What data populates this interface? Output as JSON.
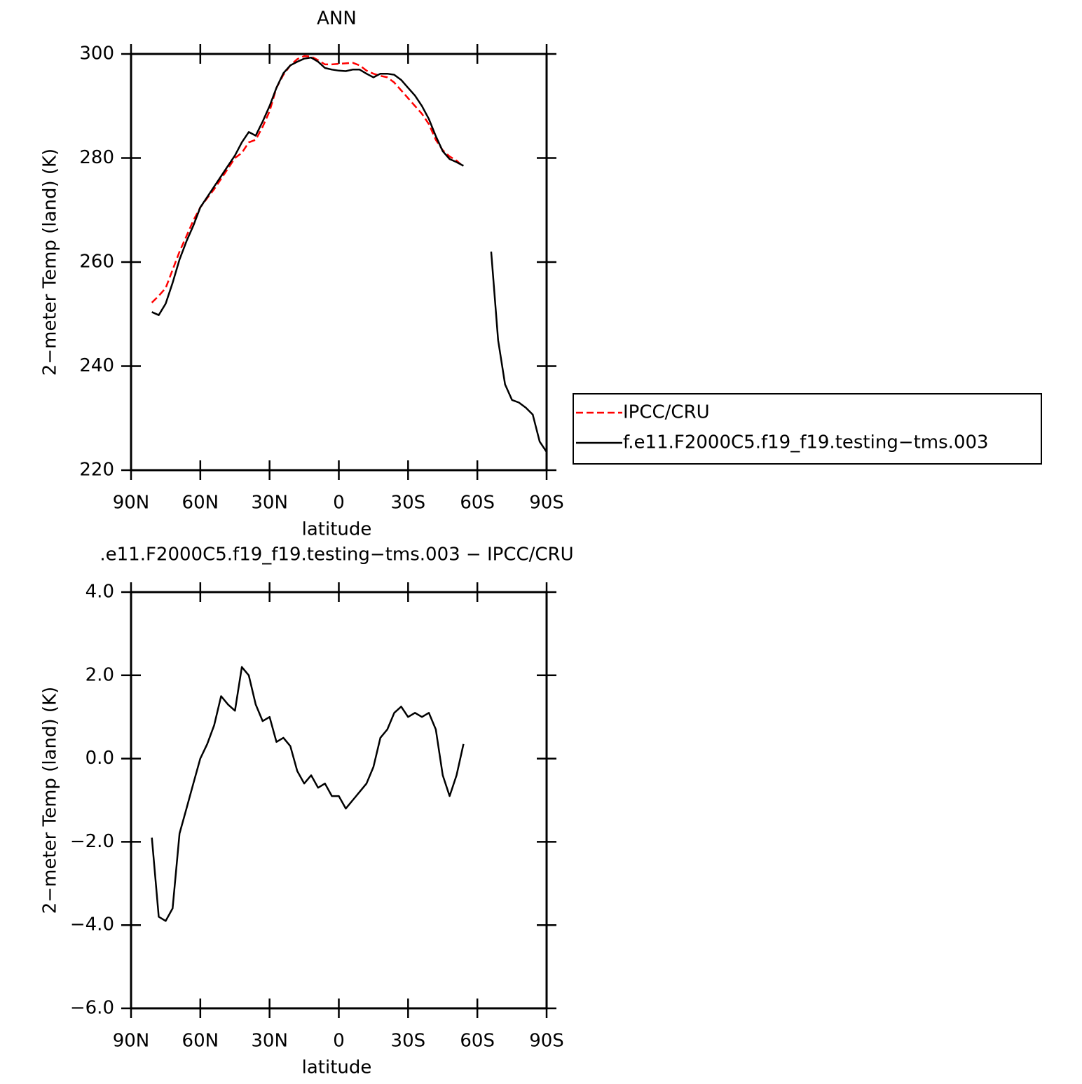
{
  "chart_data": [
    {
      "type": "line",
      "title": "ANN",
      "xlabel": "latitude",
      "ylabel": "2−meter Temp (land) (K)",
      "x": [
        81,
        78,
        75,
        72,
        69,
        66,
        63,
        60,
        57,
        54,
        51,
        48,
        45,
        42,
        39,
        36,
        33,
        30,
        27,
        24,
        21,
        18,
        15,
        12,
        9,
        6,
        3,
        0,
        -3,
        -6,
        -9,
        -12,
        -15,
        -18,
        -21,
        -24,
        -27,
        -30,
        -33,
        -36,
        -39,
        -42,
        -45,
        -48,
        -51,
        -54,
        -57,
        -60,
        -63,
        -66,
        -69,
        -72,
        -75,
        -78,
        -81,
        -84,
        -87,
        -90
      ],
      "series": [
        {
          "name": "IPCC/CRU",
          "color": "#ff0000",
          "line_style": "dashed",
          "values": [
            252.2,
            253.5,
            255,
            258.5,
            262,
            265,
            268,
            270.5,
            272.3,
            274,
            276,
            278,
            280,
            281,
            283,
            283.5,
            286,
            289,
            293.5,
            296,
            297.8,
            299,
            299.6,
            299.5,
            298.8,
            298,
            298,
            298.1,
            298.2,
            298.3,
            297.8,
            296.8,
            296.2,
            295.8,
            295.5,
            294.5,
            293,
            291.5,
            290,
            288.5,
            286.5,
            283.5,
            281.5,
            280.3,
            279.5,
            278.3,
            null,
            null,
            null,
            null,
            null,
            null,
            null,
            null,
            null,
            null,
            null,
            null
          ]
        },
        {
          "name": "f.e11.F2000C5.f19_f19.testing−tms.003",
          "color": "#000000",
          "line_style": "solid",
          "values": [
            250.4,
            249.8,
            252,
            256,
            260.5,
            264,
            267,
            270.5,
            272.5,
            274.5,
            276.5,
            278.5,
            280.5,
            283,
            285,
            284.3,
            287,
            290,
            293.5,
            296.3,
            297.8,
            298.5,
            299.1,
            299.3,
            298.5,
            297.3,
            297,
            296.8,
            296.7,
            297,
            297,
            296.2,
            295.5,
            296.2,
            296.2,
            296,
            295,
            293.5,
            292,
            290,
            287.5,
            284.2,
            281.3,
            279.8,
            279.2,
            278.5,
            null,
            null,
            null,
            262,
            245,
            236.5,
            233.5,
            233,
            232,
            230.7,
            225.5,
            223.5
          ]
        }
      ],
      "xlim": [
        90,
        -90
      ],
      "xticks": [
        {
          "value": 90,
          "label": "90N"
        },
        {
          "value": 60,
          "label": "60N"
        },
        {
          "value": 30,
          "label": "30N"
        },
        0,
        {
          "value": -30,
          "label": "30S"
        },
        {
          "value": -60,
          "label": "60S"
        },
        {
          "value": -90,
          "label": "90S"
        }
      ],
      "ylim": [
        220,
        300
      ],
      "yticks": [
        220,
        240,
        260,
        280,
        300
      ],
      "legend": "right"
    },
    {
      "type": "line",
      "title": ".e11.F2000C5.f19_f19.testing−tms.003 − IPCC/CRU",
      "xlabel": "latitude",
      "ylabel": "2−meter Temp (land) (K)",
      "x": [
        81,
        78,
        75,
        72,
        69,
        66,
        63,
        60,
        57,
        54,
        51,
        48,
        45,
        42,
        39,
        36,
        33,
        30,
        27,
        24,
        21,
        18,
        15,
        12,
        9,
        6,
        3,
        0,
        -3,
        -6,
        -9,
        -12,
        -15,
        -18,
        -21,
        -24,
        -27,
        -30,
        -33,
        -36,
        -39,
        -42,
        -45,
        -48,
        -51,
        -54,
        -57,
        -60,
        -63,
        -66,
        -69,
        -72,
        -75,
        -78,
        -81,
        -84,
        -87,
        -90
      ],
      "series": [
        {
          "color": "#000000",
          "line_style": "solid",
          "values": [
            -1.9,
            -3.8,
            -3.9,
            -3.6,
            -1.8,
            -1.2,
            -0.6,
            0.0,
            0.35,
            0.8,
            1.5,
            1.3,
            1.15,
            2.2,
            2.0,
            1.3,
            0.9,
            1.0,
            0.4,
            0.5,
            0.3,
            -0.3,
            -0.6,
            -0.4,
            -0.7,
            -0.6,
            -0.9,
            -0.9,
            -1.2,
            -1.0,
            -0.8,
            -0.6,
            -0.2,
            0.5,
            0.7,
            1.1,
            1.25,
            1.0,
            1.1,
            1.0,
            1.1,
            0.7,
            -0.4,
            -0.9,
            -0.4,
            0.35,
            null,
            null,
            null,
            null,
            null,
            null,
            null,
            null,
            null,
            null,
            null,
            null
          ]
        }
      ],
      "xlim": [
        90,
        -90
      ],
      "xticks": [
        {
          "value": 90,
          "label": "90N"
        },
        {
          "value": 60,
          "label": "60N"
        },
        {
          "value": 30,
          "label": "30N"
        },
        0,
        {
          "value": -30,
          "label": "30S"
        },
        {
          "value": -60,
          "label": "60S"
        },
        {
          "value": -90,
          "label": "90S"
        }
      ],
      "ylim": [
        -6,
        4
      ],
      "yticks": [
        {
          "value": -6,
          "label": "−6.0"
        },
        {
          "value": -4,
          "label": "−4.0"
        },
        {
          "value": -2,
          "label": "−2.0"
        },
        {
          "value": 0,
          "label": "0.0"
        },
        {
          "value": 2,
          "label": "2.0"
        },
        {
          "value": 4,
          "label": "4.0"
        }
      ]
    }
  ]
}
